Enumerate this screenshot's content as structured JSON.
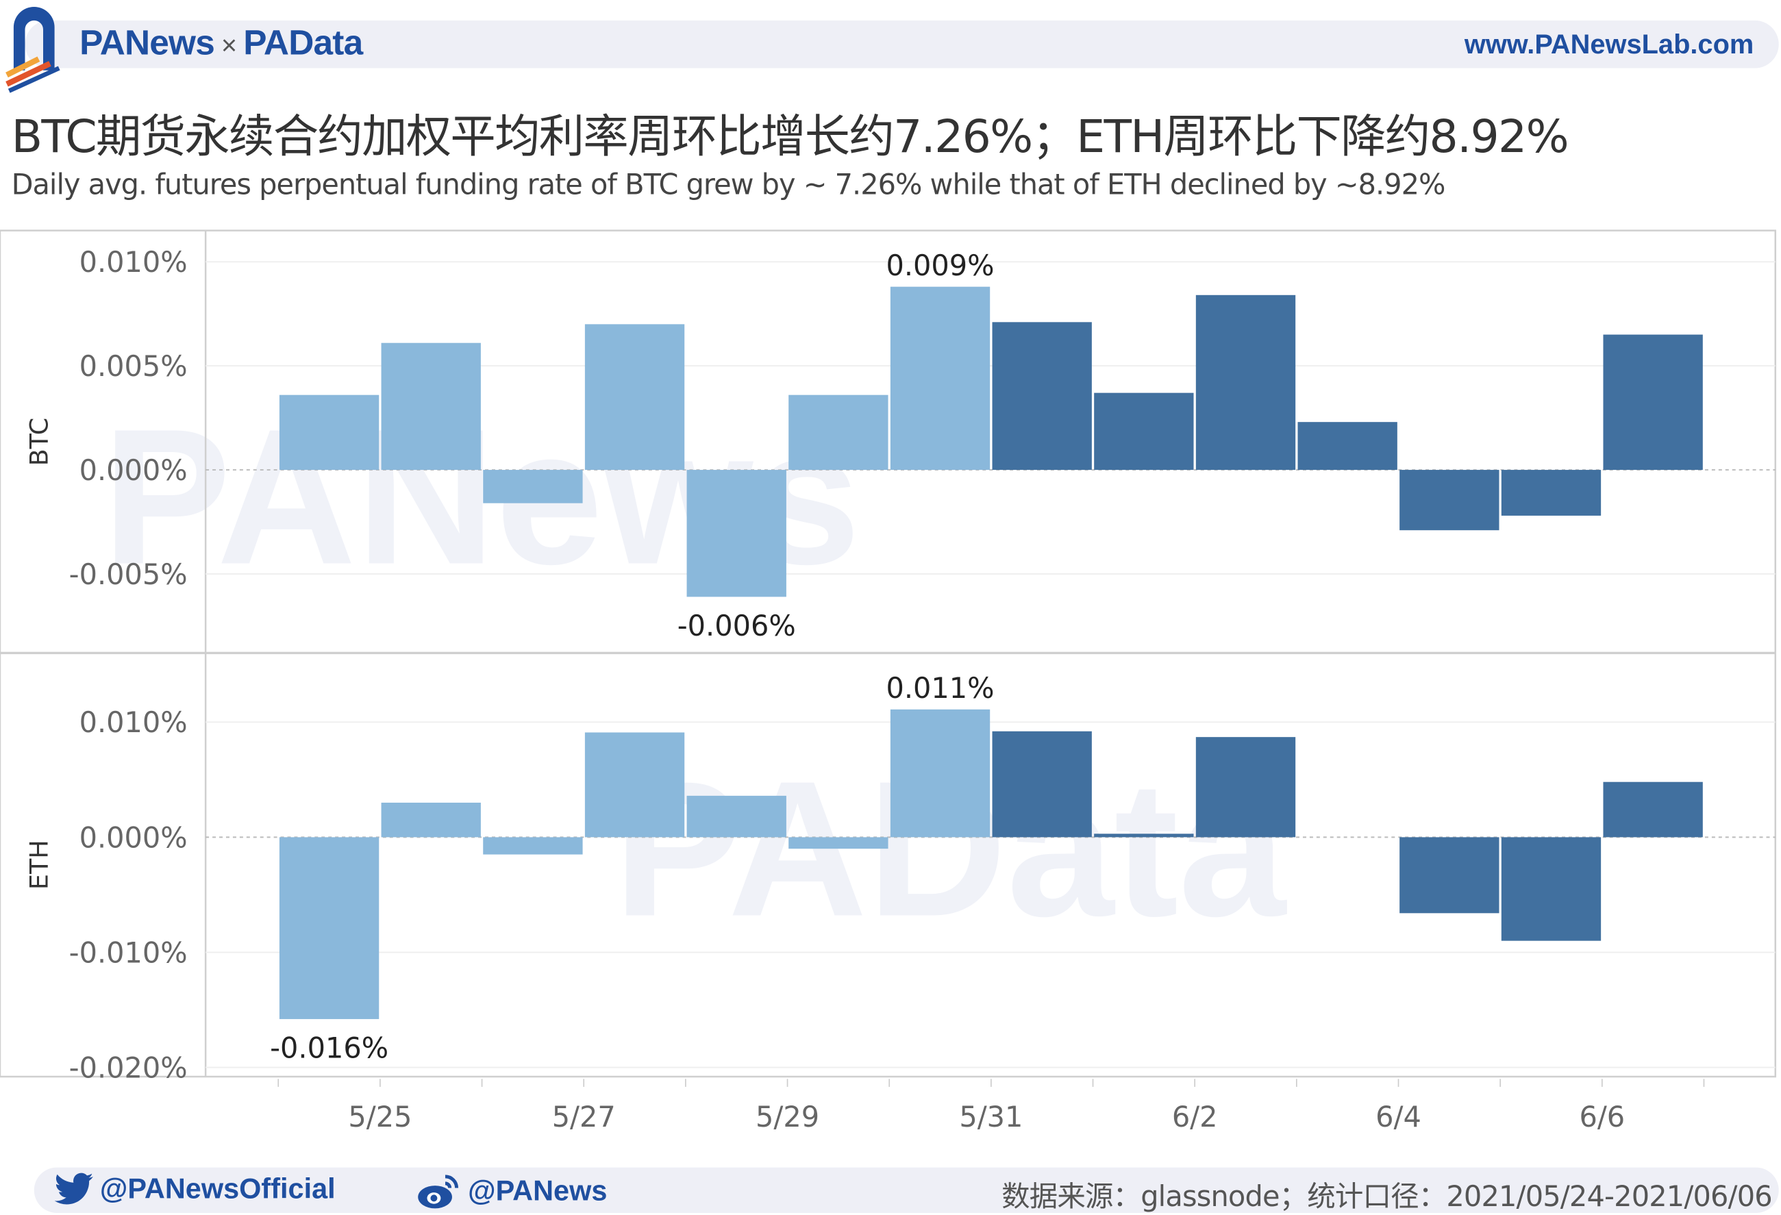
{
  "header": {
    "brand_left": "PANews",
    "brand_sep": "×",
    "brand_right": "PAData",
    "website": "www.PANewsLab.com"
  },
  "title": "BTC期货永续合约加权平均利率周环比增长约7.26%；ETH周环比下降约8.92%",
  "subtitle": "Daily avg. futures perpentual funding rate of BTC grew by ~ 7.26%  while that of ETH declined by ~8.92%",
  "footer": {
    "twitter_icon": "twitter-bird-icon",
    "twitter": "@PANewsOfficial",
    "weibo_icon": "weibo-icon",
    "weibo": "@PANews",
    "source": "数据来源：glassnode；统计口径：2021/05/24-2021/06/06"
  },
  "watermarks": [
    "PANews",
    "PAData"
  ],
  "colors": {
    "previous_week": "#8ab8db",
    "current_week": "#41709f",
    "brand": "#1f4fa0"
  },
  "chart_data": [
    {
      "type": "bar",
      "panel_label": "BTC",
      "dates": [
        "5/24",
        "5/25",
        "5/26",
        "5/27",
        "5/28",
        "5/29",
        "5/30",
        "5/31",
        "6/1",
        "6/2",
        "6/3",
        "6/4",
        "6/5",
        "6/6"
      ],
      "values": [
        0.0036,
        0.0061,
        -0.0016,
        0.007,
        -0.0061,
        0.0036,
        0.0088,
        0.0071,
        0.0037,
        0.0084,
        0.0023,
        -0.0029,
        -0.0022,
        0.0065
      ],
      "unit": "%",
      "yticks": [
        "0.010%",
        "0.005%",
        "0.000%",
        "-0.005%"
      ],
      "ytick_values": [
        0.01,
        0.005,
        0.0,
        -0.005
      ],
      "ylim": [
        -0.0088,
        0.0115
      ],
      "annotations": [
        {
          "date": "5/28",
          "text": "-0.006%"
        },
        {
          "date": "5/30",
          "text": "0.009%"
        }
      ],
      "grid": true
    },
    {
      "type": "bar",
      "panel_label": "ETH",
      "dates": [
        "5/24",
        "5/25",
        "5/26",
        "5/27",
        "5/28",
        "5/29",
        "5/30",
        "5/31",
        "6/1",
        "6/2",
        "6/3",
        "6/4",
        "6/5",
        "6/6"
      ],
      "values": [
        -0.0158,
        0.003,
        -0.0015,
        0.0091,
        0.0036,
        -0.001,
        0.0111,
        0.0092,
        0.0003,
        0.0087,
        null,
        -0.0066,
        -0.009,
        0.0048
      ],
      "unit": "%",
      "yticks": [
        "0.010%",
        "0.000%",
        "-0.010%",
        "-0.020%"
      ],
      "ytick_values": [
        0.01,
        0.0,
        -0.01,
        -0.02
      ],
      "ylim": [
        -0.0208,
        0.016
      ],
      "annotations": [
        {
          "date": "5/24",
          "text": "-0.016%"
        },
        {
          "date": "5/30",
          "text": "0.011%"
        }
      ],
      "grid": true
    }
  ],
  "xaxis": {
    "ticks": [
      "5/25",
      "5/27",
      "5/29",
      "5/31",
      "6/2",
      "6/4",
      "6/6"
    ]
  },
  "legend_note": {
    "previous_week_dates": [
      "5/24",
      "5/30"
    ],
    "current_week_dates": [
      "5/31",
      "6/6"
    ]
  }
}
